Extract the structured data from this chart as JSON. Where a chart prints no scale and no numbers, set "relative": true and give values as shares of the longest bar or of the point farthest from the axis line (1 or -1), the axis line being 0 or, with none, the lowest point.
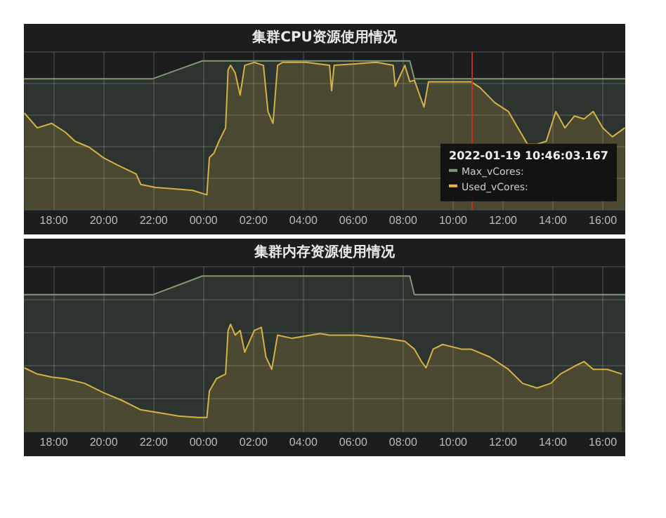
{
  "chart_data": [
    {
      "type": "area",
      "title": "集群CPU资源使用情况",
      "relative": true,
      "grid": true,
      "legend": "bottom right",
      "legend_title": "2022-01-19 10:46:03.167",
      "tick_labels": "x",
      "xlim": [
        "2022-01-18T16:48",
        "2022-01-19T16:54"
      ],
      "xticks": [
        {
          "value": "2022-01-18T18:00",
          "label": "18:00"
        },
        {
          "value": "2022-01-18T20:00",
          "label": "20:00"
        },
        {
          "value": "2022-01-18T22:00",
          "label": "22:00"
        },
        {
          "value": "2022-01-19T00:00",
          "label": "00:00"
        },
        {
          "value": "2022-01-19T02:00",
          "label": "02:00"
        },
        {
          "value": "2022-01-19T04:00",
          "label": "04:00"
        },
        {
          "value": "2022-01-19T06:00",
          "label": "06:00"
        },
        {
          "value": "2022-01-19T08:00",
          "label": "08:00"
        },
        {
          "value": "2022-01-19T10:00",
          "label": "10:00"
        },
        {
          "value": "2022-01-19T12:00",
          "label": "12:00"
        },
        {
          "value": "2022-01-19T14:00",
          "label": "14:00"
        },
        {
          "value": "2022-01-19T16:00",
          "label": "16:00"
        }
      ],
      "ref_lines": [
        {
          "axis": "x",
          "value": "2022-01-19T10:46",
          "color": "#c0302a"
        }
      ],
      "series": [
        {
          "name": "Max_vCores:",
          "color": "#7f9a72",
          "x": [
            "2022-01-18T16:48",
            "2022-01-18T21:58",
            "2022-01-18T23:57",
            "2022-01-19T08:16",
            "2022-01-19T08:27",
            "2022-01-19T16:54"
          ],
          "values": [
            0.88,
            0.88,
            1,
            1,
            0.88,
            0.88
          ]
        },
        {
          "name": "Used_vCores:",
          "color": "#e8b83c",
          "x": [
            "2022-01-18T16:49",
            "2022-01-18T17:20",
            "2022-01-18T17:55",
            "2022-01-18T18:28",
            "2022-01-18T18:51",
            "2022-01-18T19:25",
            "2022-01-18T19:59",
            "2022-01-18T20:33",
            "2022-01-18T21:18",
            "2022-01-18T21:29",
            "2022-01-18T22:04",
            "2022-01-18T22:49",
            "2022-01-18T23:34",
            "2022-01-19T00:08",
            "2022-01-19T00:14",
            "2022-01-19T00:25",
            "2022-01-19T00:37",
            "2022-01-19T00:53",
            "2022-01-19T00:59",
            "2022-01-19T01:05",
            "2022-01-19T01:16",
            "2022-01-19T01:28",
            "2022-01-19T01:39",
            "2022-01-19T02:02",
            "2022-01-19T02:24",
            "2022-01-19T02:35",
            "2022-01-19T02:47",
            "2022-01-19T02:58",
            "2022-01-19T03:10",
            "2022-01-19T04:06",
            "2022-01-19T05:03",
            "2022-01-19T05:08",
            "2022-01-19T05:14",
            "2022-01-19T06:56",
            "2022-01-19T07:36",
            "2022-01-19T07:41",
            "2022-01-19T08:04",
            "2022-01-19T08:16",
            "2022-01-19T08:27",
            "2022-01-19T08:50",
            "2022-01-19T09:01",
            "2022-01-19T09:12",
            "2022-01-19T09:58",
            "2022-01-19T10:43",
            "2022-01-19T11:05",
            "2022-01-19T11:40",
            "2022-01-19T12:13",
            "2022-01-19T12:36",
            "2022-01-19T12:59",
            "2022-01-19T13:22",
            "2022-01-19T13:44",
            "2022-01-19T14:07",
            "2022-01-19T14:29",
            "2022-01-19T14:52",
            "2022-01-19T15:15",
            "2022-01-19T15:37",
            "2022-01-19T16:00",
            "2022-01-19T16:23",
            "2022-01-19T16:53"
          ],
          "values": [
            0.65,
            0.55,
            0.58,
            0.52,
            0.46,
            0.42,
            0.35,
            0.3,
            0.24,
            0.17,
            0.15,
            0.14,
            0.13,
            0.1,
            0.35,
            0.38,
            0.46,
            0.55,
            0.94,
            0.97,
            0.92,
            0.77,
            0.97,
            0.99,
            0.97,
            0.66,
            0.58,
            0.97,
            0.99,
            0.99,
            0.97,
            0.8,
            0.97,
            0.99,
            0.97,
            0.83,
            0.97,
            0.86,
            0.87,
            0.69,
            0.86,
            0.86,
            0.86,
            0.86,
            0.82,
            0.72,
            0.66,
            0.55,
            0.44,
            0.44,
            0.46,
            0.66,
            0.55,
            0.63,
            0.61,
            0.66,
            0.55,
            0.49,
            0.55
          ]
        }
      ]
    },
    {
      "type": "area",
      "title": "集群内存资源使用情况",
      "relative": true,
      "grid": true,
      "tick_labels": "x",
      "xlim": [
        "2022-01-18T16:48",
        "2022-01-19T16:54"
      ],
      "xticks": [
        {
          "value": "2022-01-18T18:00",
          "label": "18:00"
        },
        {
          "value": "2022-01-18T20:00",
          "label": "20:00"
        },
        {
          "value": "2022-01-18T22:00",
          "label": "22:00"
        },
        {
          "value": "2022-01-19T00:00",
          "label": "00:00"
        },
        {
          "value": "2022-01-19T02:00",
          "label": "02:00"
        },
        {
          "value": "2022-01-19T04:00",
          "label": "04:00"
        },
        {
          "value": "2022-01-19T06:00",
          "label": "06:00"
        },
        {
          "value": "2022-01-19T08:00",
          "label": "08:00"
        },
        {
          "value": "2022-01-19T10:00",
          "label": "10:00"
        },
        {
          "value": "2022-01-19T12:00",
          "label": "12:00"
        },
        {
          "value": "2022-01-19T14:00",
          "label": "14:00"
        },
        {
          "value": "2022-01-19T16:00",
          "label": "16:00"
        }
      ],
      "series": [
        {
          "color": "#7f9a72",
          "x": [
            "2022-01-18T16:48",
            "2022-01-18T21:58",
            "2022-01-18T23:57",
            "2022-01-19T08:16",
            "2022-01-19T08:27",
            "2022-01-19T16:54"
          ],
          "values": [
            0.88,
            0.88,
            1,
            1,
            0.88,
            0.88
          ]
        },
        {
          "color": "#e8b83c",
          "x": [
            "2022-01-18T16:49",
            "2022-01-18T17:20",
            "2022-01-18T17:55",
            "2022-01-18T18:28",
            "2022-01-18T19:14",
            "2022-01-18T19:59",
            "2022-01-18T20:44",
            "2022-01-18T21:29",
            "2022-01-18T22:15",
            "2022-01-18T23:00",
            "2022-01-18T23:46",
            "2022-01-19T00:08",
            "2022-01-19T00:14",
            "2022-01-19T00:31",
            "2022-01-19T00:53",
            "2022-01-19T00:59",
            "2022-01-19T01:05",
            "2022-01-19T01:16",
            "2022-01-19T01:28",
            "2022-01-19T01:39",
            "2022-01-19T02:02",
            "2022-01-19T02:19",
            "2022-01-19T02:30",
            "2022-01-19T02:44",
            "2022-01-19T02:58",
            "2022-01-19T03:32",
            "2022-01-19T04:40",
            "2022-01-19T05:03",
            "2022-01-19T06:11",
            "2022-01-19T07:19",
            "2022-01-19T08:04",
            "2022-01-19T08:27",
            "2022-01-19T08:44",
            "2022-01-19T08:55",
            "2022-01-19T09:12",
            "2022-01-19T09:35",
            "2022-01-19T10:20",
            "2022-01-19T10:43",
            "2022-01-19T11:28",
            "2022-01-19T12:13",
            "2022-01-19T12:47",
            "2022-01-19T13:22",
            "2022-01-19T13:55",
            "2022-01-19T14:18",
            "2022-01-19T14:52",
            "2022-01-19T15:15",
            "2022-01-19T15:37",
            "2022-01-19T16:11",
            "2022-01-19T16:46"
          ],
          "values": [
            0.41,
            0.37,
            0.35,
            0.34,
            0.31,
            0.25,
            0.2,
            0.14,
            0.12,
            0.1,
            0.09,
            0.09,
            0.26,
            0.34,
            0.37,
            0.65,
            0.69,
            0.62,
            0.65,
            0.51,
            0.65,
            0.67,
            0.48,
            0.4,
            0.62,
            0.6,
            0.63,
            0.62,
            0.62,
            0.6,
            0.58,
            0.53,
            0.45,
            0.41,
            0.53,
            0.56,
            0.53,
            0.53,
            0.48,
            0.4,
            0.31,
            0.28,
            0.31,
            0.37,
            0.42,
            0.45,
            0.4,
            0.4,
            0.37
          ]
        }
      ]
    }
  ]
}
